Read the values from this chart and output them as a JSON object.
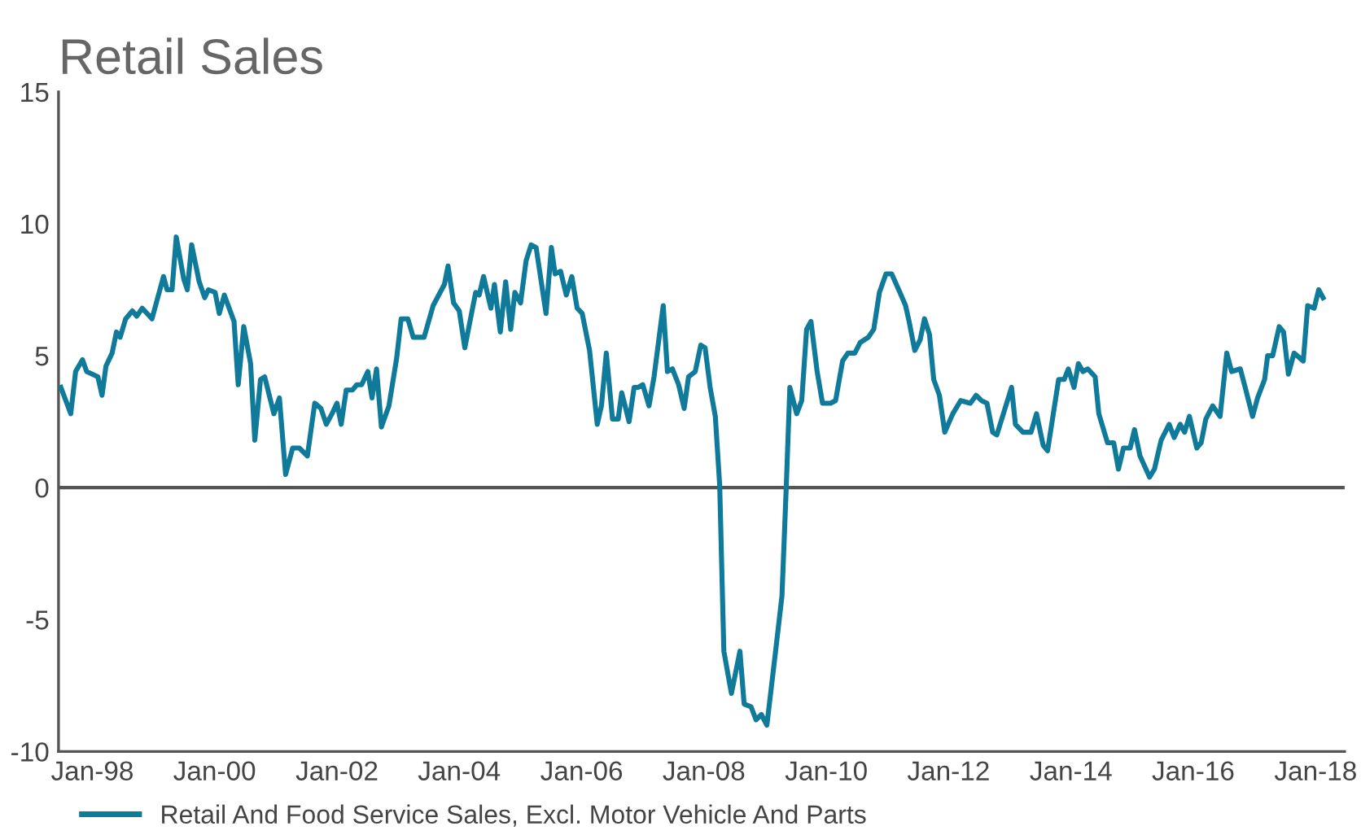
{
  "chart_data": {
    "type": "line",
    "title": "Retail Sales",
    "x": [
      "1997-06-27",
      "1997-08-25",
      "1997-09-23",
      "1997-11-03",
      "1997-11-28",
      "1998-02-03",
      "1998-02-28",
      "1998-03-23",
      "1998-04-29",
      "1998-05-25",
      "1998-06-16",
      "1998-07-19",
      "1998-08-28",
      "1998-09-23",
      "1998-10-26",
      "1998-12-23",
      "1999-03-02",
      "1999-03-23",
      "1999-04-22",
      "1999-05-17",
      "1999-07-01",
      "1999-07-22",
      "1999-08-17",
      "1999-10-01",
      "1999-11-03",
      "1999-11-25",
      "2000-01-04",
      "2000-01-29",
      "2000-02-28",
      "2000-04-26",
      "2000-05-21",
      "2000-06-23",
      "2000-08-03",
      "2000-08-28",
      "2000-10-01",
      "2000-10-26",
      "2000-12-20",
      "2001-01-22",
      "2001-02-28",
      "2001-04-11",
      "2001-05-21",
      "2001-07-08",
      "2001-08-21",
      "2001-09-27",
      "2001-10-29",
      "2001-12-02",
      "2002-01-01",
      "2002-01-26",
      "2002-02-25",
      "2002-04-04",
      "2002-04-29",
      "2002-05-28",
      "2002-07-04",
      "2002-07-29",
      "2002-08-25",
      "2002-09-23",
      "2002-11-07",
      "2002-12-23",
      "2003-01-19",
      "2003-02-28",
      "2003-04-01",
      "2003-06-05",
      "2003-07-29",
      "2003-10-04",
      "2003-10-26",
      "2003-11-28",
      "2004-01-01",
      "2004-02-03",
      "2004-04-08",
      "2004-04-29",
      "2004-05-25",
      "2004-07-08",
      "2004-07-29",
      "2004-09-02",
      "2004-10-04",
      "2004-11-03",
      "2004-11-28",
      "2005-01-01",
      "2005-02-03",
      "2005-03-05",
      "2005-04-04",
      "2005-06-02",
      "2005-07-04",
      "2005-07-26",
      "2005-08-28",
      "2005-10-01",
      "2005-11-03",
      "2005-12-05",
      "2006-01-04",
      "2006-02-17",
      "2006-04-04",
      "2006-04-29",
      "2006-05-28",
      "2006-07-04",
      "2006-08-07",
      "2006-08-28",
      "2006-10-11",
      "2006-11-10",
      "2006-12-05",
      "2007-01-01",
      "2007-02-07",
      "2007-03-09",
      "2007-05-03",
      "2007-05-28",
      "2007-06-27",
      "2007-08-03",
      "2007-09-05",
      "2007-10-01",
      "2007-11-10",
      "2007-12-13",
      "2008-01-08",
      "2008-02-07",
      "2008-03-09",
      "2008-04-04",
      "2008-04-29",
      "2008-06-13",
      "2008-08-03",
      "2008-08-28",
      "2008-10-08",
      "2008-11-07",
      "2008-12-09",
      "2009-01-11",
      "2009-03-02",
      "2009-04-11",
      "2009-05-07",
      "2009-05-28",
      "2009-07-08",
      "2009-08-07",
      "2009-09-05",
      "2009-10-01",
      "2009-11-07",
      "2009-12-09",
      "2010-01-26",
      "2010-02-25",
      "2010-04-08",
      "2010-05-10",
      "2010-06-20",
      "2010-07-22",
      "2010-09-09",
      "2010-10-11",
      "2010-11-14",
      "2010-12-23",
      "2011-01-26",
      "2011-03-16",
      "2011-04-19",
      "2011-05-10",
      "2011-06-13",
      "2011-07-15",
      "2011-08-10",
      "2011-09-09",
      "2011-10-04",
      "2011-11-07",
      "2011-12-09",
      "2012-01-26",
      "2012-03-13",
      "2012-05-10",
      "2012-06-13",
      "2012-07-15",
      "2012-08-17",
      "2012-09-20",
      "2012-10-15",
      "2012-11-28",
      "2013-01-11",
      "2013-02-03",
      "2013-03-20",
      "2013-05-07",
      "2013-06-09",
      "2013-07-19",
      "2013-08-14",
      "2013-10-19",
      "2013-11-21",
      "2013-12-16",
      "2014-01-19",
      "2014-02-14",
      "2014-03-13",
      "2014-04-11",
      "2014-05-25",
      "2014-06-16",
      "2014-08-07",
      "2014-09-13",
      "2014-10-11",
      "2014-11-10",
      "2014-12-20",
      "2015-01-15",
      "2015-02-17",
      "2015-04-15",
      "2015-05-14",
      "2015-06-23",
      "2015-08-10",
      "2015-09-09",
      "2015-10-15",
      "2015-11-10",
      "2015-12-09",
      "2016-01-22",
      "2016-02-17",
      "2016-03-16",
      "2016-04-26",
      "2016-06-09",
      "2016-07-19",
      "2016-08-17",
      "2016-10-08",
      "2016-11-10",
      "2016-12-20",
      "2017-01-19",
      "2017-03-02",
      "2017-03-20",
      "2017-04-19",
      "2017-05-28",
      "2017-06-23",
      "2017-07-22",
      "2017-08-25",
      "2017-10-19",
      "2017-11-14",
      "2017-12-23",
      "2018-01-19",
      "2018-02-14"
    ],
    "series": [
      {
        "name": "Retail And Food Service Sales, Excl. Motor Vehicle And Parts",
        "color": "#0f7a9a",
        "values": [
          3.8,
          2.8,
          4.4,
          4.85,
          4.4,
          4.2,
          3.5,
          4.6,
          5.1,
          5.9,
          5.7,
          6.4,
          6.7,
          6.5,
          6.8,
          6.4,
          8.0,
          7.5,
          7.5,
          9.5,
          7.9,
          7.5,
          9.2,
          7.8,
          7.2,
          7.5,
          7.4,
          6.6,
          7.3,
          6.3,
          3.9,
          6.1,
          4.7,
          1.8,
          4.1,
          4.2,
          2.8,
          3.4,
          0.5,
          1.5,
          1.5,
          1.2,
          3.2,
          3.0,
          2.4,
          2.8,
          3.2,
          2.4,
          3.7,
          3.7,
          3.9,
          3.9,
          4.4,
          3.4,
          4.5,
          2.3,
          3.1,
          4.9,
          6.4,
          6.4,
          5.7,
          5.7,
          6.9,
          7.7,
          8.4,
          7.0,
          6.7,
          5.3,
          7.4,
          7.3,
          8.0,
          6.8,
          7.7,
          5.9,
          7.8,
          6.0,
          7.4,
          7.0,
          8.6,
          9.2,
          9.1,
          6.6,
          9.1,
          8.1,
          8.2,
          7.3,
          8.0,
          6.8,
          6.6,
          5.2,
          2.4,
          3.1,
          5.1,
          2.6,
          2.6,
          3.6,
          2.5,
          3.8,
          3.8,
          3.9,
          3.1,
          4.2,
          6.9,
          4.4,
          4.5,
          3.9,
          3.0,
          4.2,
          4.4,
          5.4,
          5.3,
          3.8,
          2.7,
          0.1,
          -6.2,
          -7.8,
          -6.2,
          -8.2,
          -8.3,
          -8.8,
          -8.6,
          -9.0,
          -6.3,
          -4.1,
          0.1,
          3.8,
          2.8,
          3.3,
          6.0,
          6.3,
          4.4,
          3.2,
          3.2,
          3.3,
          4.8,
          5.1,
          5.1,
          5.5,
          5.7,
          6.0,
          7.4,
          8.1,
          8.1,
          7.4,
          6.9,
          6.3,
          5.2,
          5.6,
          6.4,
          5.8,
          4.1,
          3.5,
          2.1,
          2.8,
          3.3,
          3.2,
          3.5,
          3.3,
          3.2,
          2.1,
          2.0,
          2.9,
          3.8,
          2.4,
          2.1,
          2.1,
          2.8,
          1.6,
          1.4,
          4.1,
          4.1,
          4.5,
          3.8,
          4.7,
          4.4,
          4.5,
          4.2,
          2.8,
          1.7,
          1.7,
          0.7,
          1.5,
          1.5,
          2.2,
          1.2,
          0.4,
          0.7,
          1.8,
          2.4,
          1.9,
          2.4,
          2.1,
          2.7,
          1.5,
          1.7,
          2.6,
          3.1,
          2.7,
          5.1,
          4.4,
          4.5,
          3.7,
          2.7,
          3.4,
          4.1,
          5.0,
          5.0,
          6.1,
          5.9,
          4.3,
          5.1,
          4.8,
          6.9,
          6.8,
          7.5,
          7.2
        ]
      }
    ],
    "xlim": [
      "1997-06-13",
      "2018-06-23"
    ],
    "xticks": [
      {
        "value": "1998-01-01",
        "label": "Jan-98"
      },
      {
        "value": "2000-01-01",
        "label": "Jan-00"
      },
      {
        "value": "2002-01-01",
        "label": "Jan-02"
      },
      {
        "value": "2004-01-01",
        "label": "Jan-04"
      },
      {
        "value": "2006-01-01",
        "label": "Jan-06"
      },
      {
        "value": "2008-01-01",
        "label": "Jan-08"
      },
      {
        "value": "2010-01-01",
        "label": "Jan-10"
      },
      {
        "value": "2012-01-01",
        "label": "Jan-12"
      },
      {
        "value": "2014-01-01",
        "label": "Jan-14"
      },
      {
        "value": "2016-01-01",
        "label": "Jan-16"
      },
      {
        "value": "2018-01-01",
        "label": "Jan-18"
      }
    ],
    "ylim": [
      -10,
      15
    ],
    "yticks": [
      -10,
      -5,
      0,
      5,
      10,
      15
    ],
    "ref_lines": [
      {
        "axis": "y",
        "value": 0,
        "color": "#555555"
      }
    ],
    "grid": false,
    "legend": "bottom left",
    "marker": "none",
    "line_style": "solid"
  }
}
